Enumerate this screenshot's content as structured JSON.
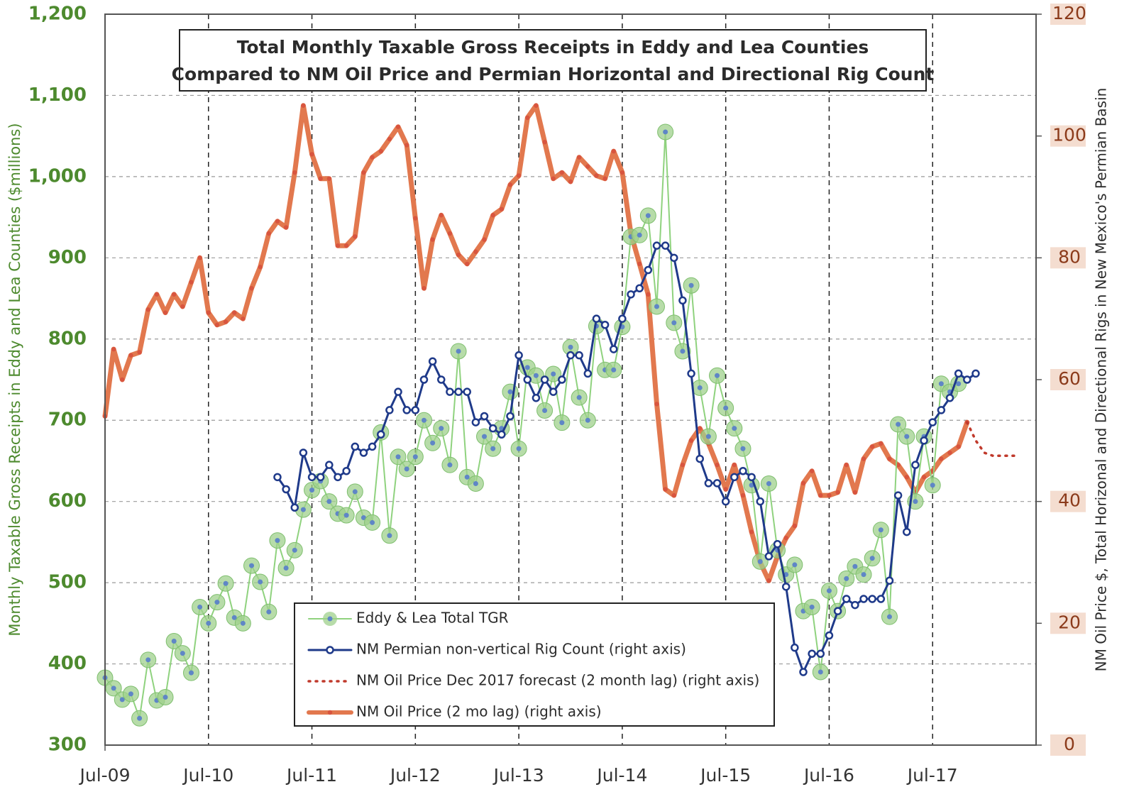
{
  "chart_data": {
    "type": "line",
    "title": [
      "Total Monthly Taxable Gross Receipts in Eddy and Lea Counties",
      "Compared to NM Oil Price and Permian Horizontal and Directional Rig Count"
    ],
    "y_label": "Monthly Taxable Gross Receipts in Eddy and Lea Counties ($millions)",
    "y2_label": "NM Oil Price $, Total Horizonal and Directional Rigs in New Mexico's Permian Basin",
    "x": [
      0,
      1,
      2,
      3,
      4,
      5,
      6,
      7,
      8,
      9,
      10,
      11,
      12,
      13,
      14,
      15,
      16,
      17,
      18,
      19,
      20,
      21,
      22,
      23,
      24,
      25,
      26,
      27,
      28,
      29,
      30,
      31,
      32,
      33,
      34,
      35,
      36,
      37,
      38,
      39,
      40,
      41,
      42,
      43,
      44,
      45,
      46,
      47,
      48,
      49,
      50,
      51,
      52,
      53,
      54,
      55,
      56,
      57,
      58,
      59,
      60,
      61,
      62,
      63,
      64,
      65,
      66,
      67,
      68,
      69,
      70,
      71,
      72,
      73,
      74,
      75,
      76,
      77,
      78,
      79,
      80,
      81,
      82,
      83,
      84,
      85,
      86,
      87,
      88,
      89,
      90,
      91,
      92,
      93,
      94,
      95,
      96,
      97,
      98,
      99,
      100,
      101,
      102,
      103,
      104,
      105,
      106,
      107
    ],
    "xlim": [
      0,
      108
    ],
    "xticks": [
      {
        "value": 0,
        "label": "Jul-09"
      },
      {
        "value": 12,
        "label": "Jul-10"
      },
      {
        "value": 24,
        "label": "Jul-11"
      },
      {
        "value": 36,
        "label": "Jul-12"
      },
      {
        "value": 48,
        "label": "Jul-13"
      },
      {
        "value": 60,
        "label": "Jul-14"
      },
      {
        "value": 72,
        "label": "Jul-15"
      },
      {
        "value": 84,
        "label": "Jul-16"
      },
      {
        "value": 96,
        "label": "Jul-17"
      }
    ],
    "ylim": [
      300,
      1200
    ],
    "yticks": [
      300,
      400,
      500,
      600,
      700,
      800,
      900,
      {
        "value": 1000,
        "label": "1,000"
      },
      {
        "value": 1100,
        "label": "1,100"
      },
      {
        "value": 1200,
        "label": "1,200"
      }
    ],
    "y2lim": [
      0,
      120
    ],
    "y2ticks": [
      0,
      20,
      40,
      60,
      80,
      100,
      120
    ],
    "grid": true,
    "legend": "bottom-center",
    "series": [
      {
        "name": "Eddy & Lea Total TGR",
        "color": "#8fd27e",
        "values": [
          383,
          370,
          356,
          363,
          333,
          405,
          355,
          359,
          428,
          413,
          389,
          470,
          450,
          476,
          499,
          457,
          450,
          521,
          501,
          464,
          552,
          518,
          540,
          590,
          614,
          625,
          600,
          585,
          583,
          612,
          580,
          574,
          685,
          558,
          655,
          640,
          655,
          700,
          672,
          690,
          645,
          785,
          630,
          622,
          680,
          665,
          690,
          735,
          665,
          765,
          755,
          712,
          757,
          697,
          790,
          728,
          700,
          816,
          762,
          762,
          815,
          926,
          928,
          952,
          840,
          1055,
          820,
          785,
          866,
          740,
          680,
          755,
          715,
          690,
          665,
          620,
          526,
          622,
          540,
          510,
          522,
          465,
          470,
          390,
          490,
          465,
          505,
          520,
          510,
          530,
          565,
          458,
          695,
          680,
          600,
          680,
          620,
          745,
          735,
          745,
          null,
          null,
          null,
          null,
          null,
          null,
          null,
          null
        ]
      },
      {
        "name": "NM Permian non-vertical Rig Count (right axis)",
        "color": "#1f3a8a",
        "axis": "y2",
        "values": [
          null,
          null,
          null,
          null,
          null,
          null,
          null,
          null,
          null,
          null,
          null,
          null,
          null,
          null,
          null,
          null,
          null,
          null,
          null,
          null,
          44,
          42,
          39,
          48,
          44,
          44,
          46,
          44,
          45,
          49,
          48,
          49,
          51,
          55,
          58,
          55,
          55,
          60,
          63,
          60,
          58,
          58,
          58,
          53,
          54,
          52,
          51,
          54,
          64,
          60,
          57,
          60,
          58,
          60,
          64,
          64,
          61,
          70,
          69,
          65,
          70,
          74,
          75,
          78,
          82,
          82,
          80,
          73,
          61,
          47,
          43,
          43,
          40,
          44,
          45,
          44,
          40,
          31,
          33,
          26,
          16,
          12,
          15,
          15,
          18,
          22,
          24,
          23,
          24,
          24,
          24,
          27,
          41,
          35,
          46,
          50,
          53,
          55,
          57,
          61,
          60,
          61,
          null,
          null,
          null,
          null,
          null,
          null
        ]
      },
      {
        "name": "NM Oil Price Dec 2017 forecast (2 month lag) (right axis)",
        "color": "#c0392b",
        "axis": "y2",
        "line_style": "dotted",
        "values": [
          null,
          null,
          null,
          null,
          null,
          null,
          null,
          null,
          null,
          null,
          null,
          null,
          null,
          null,
          null,
          null,
          null,
          null,
          null,
          null,
          null,
          null,
          null,
          null,
          null,
          null,
          null,
          null,
          null,
          null,
          null,
          null,
          null,
          null,
          null,
          null,
          null,
          null,
          null,
          null,
          null,
          null,
          null,
          null,
          null,
          null,
          null,
          null,
          null,
          null,
          null,
          null,
          null,
          null,
          null,
          null,
          null,
          null,
          null,
          null,
          null,
          null,
          null,
          null,
          null,
          null,
          null,
          null,
          null,
          null,
          null,
          null,
          null,
          null,
          null,
          null,
          null,
          null,
          null,
          null,
          null,
          null,
          null,
          null,
          null,
          null,
          null,
          null,
          null,
          null,
          null,
          null,
          null,
          null,
          null,
          null,
          null,
          null,
          null,
          null,
          53,
          50,
          48,
          47.5,
          47.5,
          47.5,
          47.5,
          null
        ]
      },
      {
        "name": "NM Oil Price (2 mo lag) (right axis)",
        "color": "#e2784e",
        "axis": "y2",
        "values": [
          54,
          65,
          60,
          64,
          64.5,
          71.5,
          74,
          71,
          74,
          72,
          76,
          80,
          71,
          69,
          69.5,
          71,
          70,
          75,
          78.5,
          84,
          86,
          85,
          94,
          105,
          97,
          93,
          93,
          82,
          82,
          83.5,
          94,
          96.5,
          97.5,
          99.5,
          101.5,
          98.5,
          86.5,
          75,
          83,
          87,
          84,
          80.5,
          79,
          81,
          83,
          87,
          88,
          92,
          93.5,
          103,
          105,
          99,
          93,
          94,
          92.5,
          96.5,
          95,
          93.5,
          93,
          97.5,
          94,
          84,
          79,
          74,
          56,
          42,
          41,
          46,
          50,
          52,
          49.5,
          46,
          42,
          46,
          41,
          35,
          30,
          27,
          31,
          34,
          36,
          43,
          45,
          41,
          41,
          41.5,
          46,
          41.5,
          47,
          49,
          49.5,
          47,
          46,
          44,
          41.5,
          44,
          45,
          47,
          48,
          49,
          53,
          null,
          null,
          null,
          null,
          null,
          null,
          null
        ]
      }
    ]
  }
}
